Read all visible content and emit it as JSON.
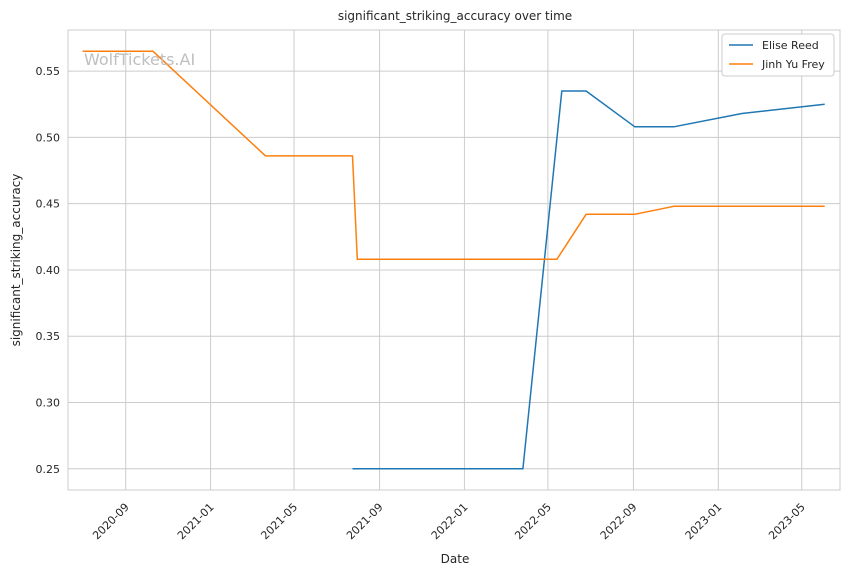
{
  "chart_data": {
    "type": "line",
    "title": "significant_striking_accuracy over time",
    "xlabel": "Date",
    "ylabel": "significant_striking_accuracy",
    "watermark": "WolfTickets.AI",
    "x_ticks": [
      "2020-09",
      "2021-01",
      "2021-05",
      "2021-09",
      "2022-01",
      "2022-05",
      "2022-09",
      "2023-01",
      "2023-05"
    ],
    "y_ticks": [
      "0.25",
      "0.30",
      "0.35",
      "0.40",
      "0.45",
      "0.50",
      "0.55"
    ],
    "xlim": [
      "2020-06-10",
      "2023-06-25"
    ],
    "ylim": [
      0.234,
      0.581
    ],
    "grid": true,
    "legend_position": "top-right",
    "series": [
      {
        "name": "Elise Reed",
        "color": "#1f77b4",
        "points": [
          {
            "x": "2021-07-24",
            "y": 0.25
          },
          {
            "x": "2022-03-26",
            "y": 0.25
          },
          {
            "x": "2022-05-21",
            "y": 0.535
          },
          {
            "x": "2022-06-25",
            "y": 0.535
          },
          {
            "x": "2022-09-03",
            "y": 0.508
          },
          {
            "x": "2022-10-29",
            "y": 0.508
          },
          {
            "x": "2023-02-04",
            "y": 0.518
          },
          {
            "x": "2023-06-03",
            "y": 0.525
          }
        ]
      },
      {
        "name": "Jinh Yu Frey",
        "color": "#ff7f0e",
        "points": [
          {
            "x": "2020-07-01",
            "y": 0.565
          },
          {
            "x": "2020-10-10",
            "y": 0.565
          },
          {
            "x": "2021-03-21",
            "y": 0.486
          },
          {
            "x": "2021-07-24",
            "y": 0.486
          },
          {
            "x": "2021-07-31",
            "y": 0.408
          },
          {
            "x": "2022-05-14",
            "y": 0.408
          },
          {
            "x": "2022-06-25",
            "y": 0.442
          },
          {
            "x": "2022-09-03",
            "y": 0.442
          },
          {
            "x": "2022-10-29",
            "y": 0.448
          },
          {
            "x": "2023-06-03",
            "y": 0.448
          }
        ]
      }
    ]
  }
}
